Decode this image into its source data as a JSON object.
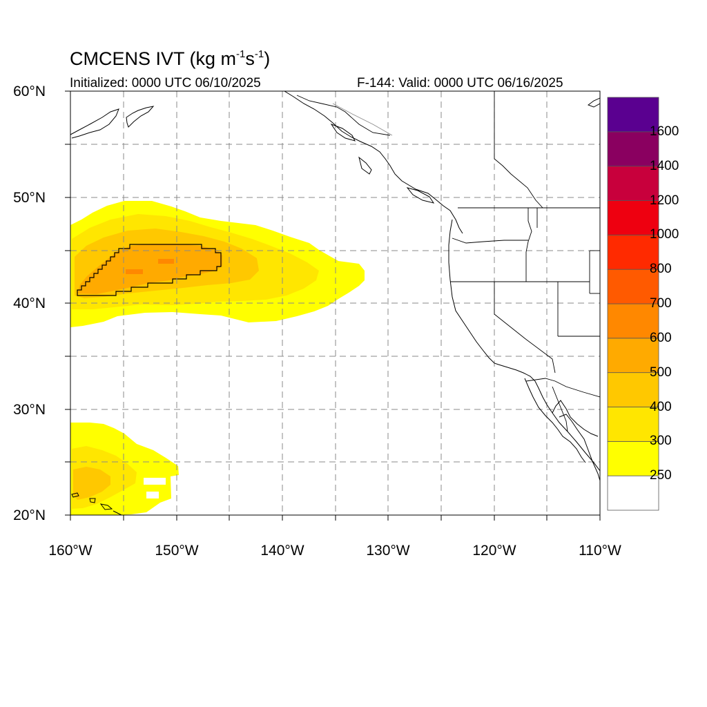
{
  "header": {
    "title_main": "CMCENS IVT (kg m",
    "title_exp1": "-1",
    "title_mid": "s",
    "title_exp2": "-1",
    "title_end": ")",
    "initialized": "Initialized: 0000 UTC 06/10/2025",
    "valid": "F-144: Valid: 0000 UTC 06/16/2025"
  },
  "map": {
    "lon_range": [
      -160,
      -110
    ],
    "lat_range": [
      20,
      60
    ],
    "grid_spacing_deg": 5,
    "grid_style": "dashed",
    "lat_labels": [
      "60°N",
      "50°N",
      "40°N",
      "30°N",
      "20°N"
    ],
    "lon_labels": [
      "160°W",
      "150°W",
      "140°W",
      "130°W",
      "120°W",
      "110°W"
    ]
  },
  "colorbar": {
    "levels": [
      "250",
      "300",
      "400",
      "500",
      "600",
      "700",
      "800",
      "1000",
      "1200",
      "1400",
      "1600"
    ],
    "colors": [
      "#ffff00",
      "#ffe600",
      "#ffc800",
      "#ffaa00",
      "#ff8800",
      "#ff5a00",
      "#ff2a00",
      "#ee0010",
      "#c8003c",
      "#8a0060",
      "#5a0090"
    ],
    "below_color": "#ffffff"
  },
  "ivt_features": [
    {
      "name": "north-pacific-atmospheric-river",
      "lon_range": [
        -160,
        -132.5
      ],
      "lat_range": [
        37.5,
        49.5
      ],
      "max_level": "600"
    },
    {
      "name": "subtropical-moisture-plume",
      "lon_range": [
        -160,
        -150
      ],
      "lat_range": [
        20,
        28.5
      ],
      "max_level": "400"
    }
  ]
}
